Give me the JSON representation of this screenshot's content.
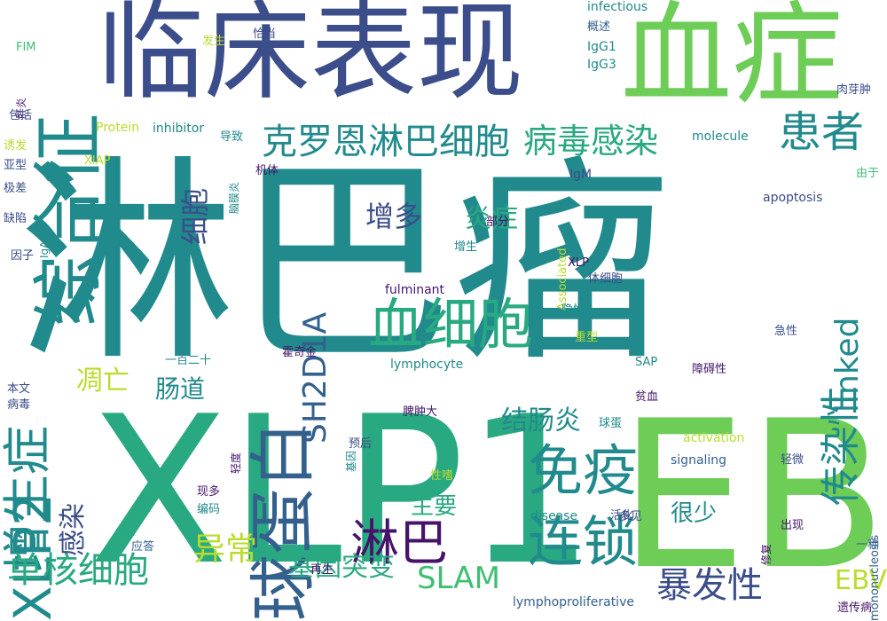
{
  "colors": {
    "background": "#ffffff",
    "dark_purple": "#46136a",
    "indigo": "#3b4d8a",
    "blue": "#34608e",
    "teal": "#218a8c",
    "green_teal": "#29a981",
    "green": "#40bf73",
    "light_green": "#6dcd57",
    "yellow_green": "#b9dc2d"
  },
  "words": [
    {
      "text": "淋巴瘤",
      "size": 245,
      "color": "teal",
      "rotated": false
    },
    {
      "text": "XLP1",
      "size": 230,
      "color": "green_teal",
      "rotated": false
    },
    {
      "text": "EB",
      "size": 230,
      "color": "light_green",
      "rotated": false
    },
    {
      "text": "临床表现",
      "size": 120,
      "color": "indigo",
      "rotated": false
    },
    {
      "text": "血症",
      "size": 125,
      "color": "light_green",
      "rotated": false
    },
    {
      "text": "综合征",
      "size": 80,
      "color": "teal",
      "rotated": true
    },
    {
      "text": "球蛋白",
      "size": 75,
      "color": "blue",
      "rotated": true
    },
    {
      "text": "血细胞",
      "size": 62,
      "color": "green_teal",
      "rotated": false
    },
    {
      "text": "免疫",
      "size": 62,
      "color": "teal",
      "rotated": false
    },
    {
      "text": "连锁",
      "size": 62,
      "color": "teal",
      "rotated": false
    },
    {
      "text": "XLP2",
      "size": 58,
      "color": "teal",
      "rotated": true
    },
    {
      "text": "增生症",
      "size": 55,
      "color": "teal",
      "rotated": true
    },
    {
      "text": "淋巴",
      "size": 55,
      "color": "dark_purple",
      "rotated": false
    },
    {
      "text": "患者",
      "size": 48,
      "color": "teal",
      "rotated": false
    },
    {
      "text": "传染性",
      "size": 45,
      "color": "teal",
      "rotated": true
    },
    {
      "text": "克罗恩淋巴细胞",
      "size": 40,
      "color": "teal",
      "rotated": false
    },
    {
      "text": "病毒感染",
      "size": 38,
      "color": "green_teal",
      "rotated": false
    },
    {
      "text": "单核细胞",
      "size": 40,
      "color": "green_teal",
      "rotated": false
    },
    {
      "text": "暴发性",
      "size": 40,
      "color": "indigo",
      "rotated": false
    },
    {
      "text": "异常",
      "size": 36,
      "color": "yellow_green",
      "rotated": false
    },
    {
      "text": "SH2D1A",
      "size": 36,
      "color": "blue",
      "rotated": true
    },
    {
      "text": "linked",
      "size": 36,
      "color": "teal",
      "rotated": true
    },
    {
      "text": "SLAM",
      "size": 34,
      "color": "green",
      "rotated": false
    },
    {
      "text": "基因突变",
      "size": 30,
      "color": "green_teal",
      "rotated": false
    },
    {
      "text": "细胞",
      "size": 32,
      "color": "indigo",
      "rotated": true
    },
    {
      "text": "增多",
      "size": 32,
      "color": "indigo",
      "rotated": false
    },
    {
      "text": "炎症",
      "size": 30,
      "color": "green_teal",
      "rotated": false
    },
    {
      "text": "结肠炎",
      "size": 30,
      "color": "teal",
      "rotated": false
    },
    {
      "text": "感染",
      "size": 30,
      "color": "indigo",
      "rotated": true
    },
    {
      "text": "凋亡",
      "size": 30,
      "color": "yellow_green",
      "rotated": false
    },
    {
      "text": "肠道",
      "size": 28,
      "color": "teal",
      "rotated": false
    },
    {
      "text": "EBV",
      "size": 30,
      "color": "yellow_green",
      "rotated": false
    },
    {
      "text": "主要",
      "size": 26,
      "color": "green_teal",
      "rotated": false
    },
    {
      "text": "很少",
      "size": 26,
      "color": "teal",
      "rotated": false
    },
    {
      "text": "infectious",
      "size": 14,
      "color": "teal",
      "rotated": false
    },
    {
      "text": "概述",
      "size": 13,
      "color": "blue",
      "rotated": false
    },
    {
      "text": "IgG1",
      "size": 14,
      "color": "teal",
      "rotated": false
    },
    {
      "text": "IgG3",
      "size": 14,
      "color": "teal",
      "rotated": false
    },
    {
      "text": "发生",
      "size": 13,
      "color": "yellow_green",
      "rotated": false
    },
    {
      "text": "恰当",
      "size": 13,
      "color": "indigo",
      "rotated": false
    },
    {
      "text": "FIM",
      "size": 13,
      "color": "green",
      "rotated": false
    },
    {
      "text": "肝炎",
      "size": 12,
      "color": "dark_purple",
      "rotated": true
    },
    {
      "text": "包括",
      "size": 13,
      "color": "indigo",
      "rotated": false
    },
    {
      "text": "诱发",
      "size": 13,
      "color": "yellow_green",
      "rotated": false
    },
    {
      "text": "亚型",
      "size": 13,
      "color": "indigo",
      "rotated": false
    },
    {
      "text": "极差",
      "size": 13,
      "color": "indigo",
      "rotated": false
    },
    {
      "text": "缺陷",
      "size": 13,
      "color": "indigo",
      "rotated": false
    },
    {
      "text": "IgA",
      "size": 12,
      "color": "teal",
      "rotated": true
    },
    {
      "text": "因子",
      "size": 13,
      "color": "indigo",
      "rotated": false
    },
    {
      "text": "Protein",
      "size": 14,
      "color": "yellow_green",
      "rotated": false
    },
    {
      "text": "inhibitor",
      "size": 14,
      "color": "teal",
      "rotated": false
    },
    {
      "text": "导致",
      "size": 13,
      "color": "teal",
      "rotated": false
    },
    {
      "text": "脑膜炎",
      "size": 12,
      "color": "teal",
      "rotated": true
    },
    {
      "text": "molecule",
      "size": 14,
      "color": "teal",
      "rotated": false
    },
    {
      "text": "肉芽肿",
      "size": 13,
      "color": "indigo",
      "rotated": false
    },
    {
      "text": "XIAP",
      "size": 13,
      "color": "yellow_green",
      "rotated": false
    },
    {
      "text": "机体",
      "size": 13,
      "color": "dark_purple",
      "rotated": false
    },
    {
      "text": "IgM",
      "size": 14,
      "color": "indigo",
      "rotated": false
    },
    {
      "text": "Associated",
      "size": 13,
      "color": "yellow_green",
      "rotated": true
    },
    {
      "text": "由于",
      "size": 13,
      "color": "green",
      "rotated": false
    },
    {
      "text": "apoptosis",
      "size": 14,
      "color": "indigo",
      "rotated": false
    },
    {
      "text": "部分",
      "size": 13,
      "color": "dark_purple",
      "rotated": false
    },
    {
      "text": "增生",
      "size": 13,
      "color": "teal",
      "rotated": false
    },
    {
      "text": "XLP",
      "size": 13,
      "color": "dark_purple",
      "rotated": false
    },
    {
      "text": "体细胞",
      "size": 13,
      "color": "indigo",
      "rotated": false
    },
    {
      "text": "fulminant",
      "size": 14,
      "color": "dark_purple",
      "rotated": false
    },
    {
      "text": "隐性",
      "size": 13,
      "color": "teal",
      "rotated": false
    },
    {
      "text": "重型",
      "size": 13,
      "color": "yellow_green",
      "rotated": false
    },
    {
      "text": "急性",
      "size": 13,
      "color": "indigo",
      "rotated": false
    },
    {
      "text": "霍奇金",
      "size": 13,
      "color": "dark_purple",
      "rotated": false
    },
    {
      "text": "一百二十",
      "size": 13,
      "color": "teal",
      "rotated": false
    },
    {
      "text": "lymphocyte",
      "size": 14,
      "color": "teal",
      "rotated": false
    },
    {
      "text": "SAP",
      "size": 13,
      "color": "teal",
      "rotated": false
    },
    {
      "text": "障碍性",
      "size": 13,
      "color": "dark_purple",
      "rotated": false
    },
    {
      "text": "本文",
      "size": 13,
      "color": "indigo",
      "rotated": false
    },
    {
      "text": "病毒",
      "size": 13,
      "color": "indigo",
      "rotated": false
    },
    {
      "text": "贫血",
      "size": 13,
      "color": "dark_purple",
      "rotated": false
    },
    {
      "text": "脾肿大",
      "size": 13,
      "color": "dark_purple",
      "rotated": false
    },
    {
      "text": "球蛋",
      "size": 13,
      "color": "teal",
      "rotated": false
    },
    {
      "text": "轻度",
      "size": 12,
      "color": "dark_purple",
      "rotated": true
    },
    {
      "text": "基因",
      "size": 12,
      "color": "teal",
      "rotated": true
    },
    {
      "text": "预后",
      "size": 13,
      "color": "indigo",
      "rotated": false
    },
    {
      "text": "activation",
      "size": 14,
      "color": "yellow_green",
      "rotated": false
    },
    {
      "text": "signaling",
      "size": 14,
      "color": "blue",
      "rotated": false
    },
    {
      "text": "轻微",
      "size": 13,
      "color": "indigo",
      "rotated": false
    },
    {
      "text": "mononucleosis",
      "size": 13,
      "color": "blue",
      "rotated": true
    },
    {
      "text": "性嗜",
      "size": 13,
      "color": "yellow_green",
      "rotated": false
    },
    {
      "text": "现多",
      "size": 13,
      "color": "dark_purple",
      "rotated": false
    },
    {
      "text": "编码",
      "size": 13,
      "color": "teal",
      "rotated": false
    },
    {
      "text": "disease",
      "size": 14,
      "color": "teal",
      "rotated": false
    },
    {
      "text": "活化",
      "size": 13,
      "color": "indigo",
      "rotated": false
    },
    {
      "text": "多见",
      "size": 13,
      "color": "indigo",
      "rotated": false
    },
    {
      "text": "修复",
      "size": 12,
      "color": "dark_purple",
      "rotated": true
    },
    {
      "text": "出现",
      "size": 13,
      "color": "dark_purple",
      "rotated": false
    },
    {
      "text": "应答",
      "size": 13,
      "color": "blue",
      "rotated": false
    },
    {
      "text": "一种",
      "size": 13,
      "color": "blue",
      "rotated": false
    },
    {
      "text": "再生",
      "size": 13,
      "color": "dark_purple",
      "rotated": false
    },
    {
      "text": "lymphoproliferative",
      "size": 14,
      "color": "blue",
      "rotated": false
    },
    {
      "text": "遗传病",
      "size": 13,
      "color": "dark_purple",
      "rotated": false
    }
  ]
}
